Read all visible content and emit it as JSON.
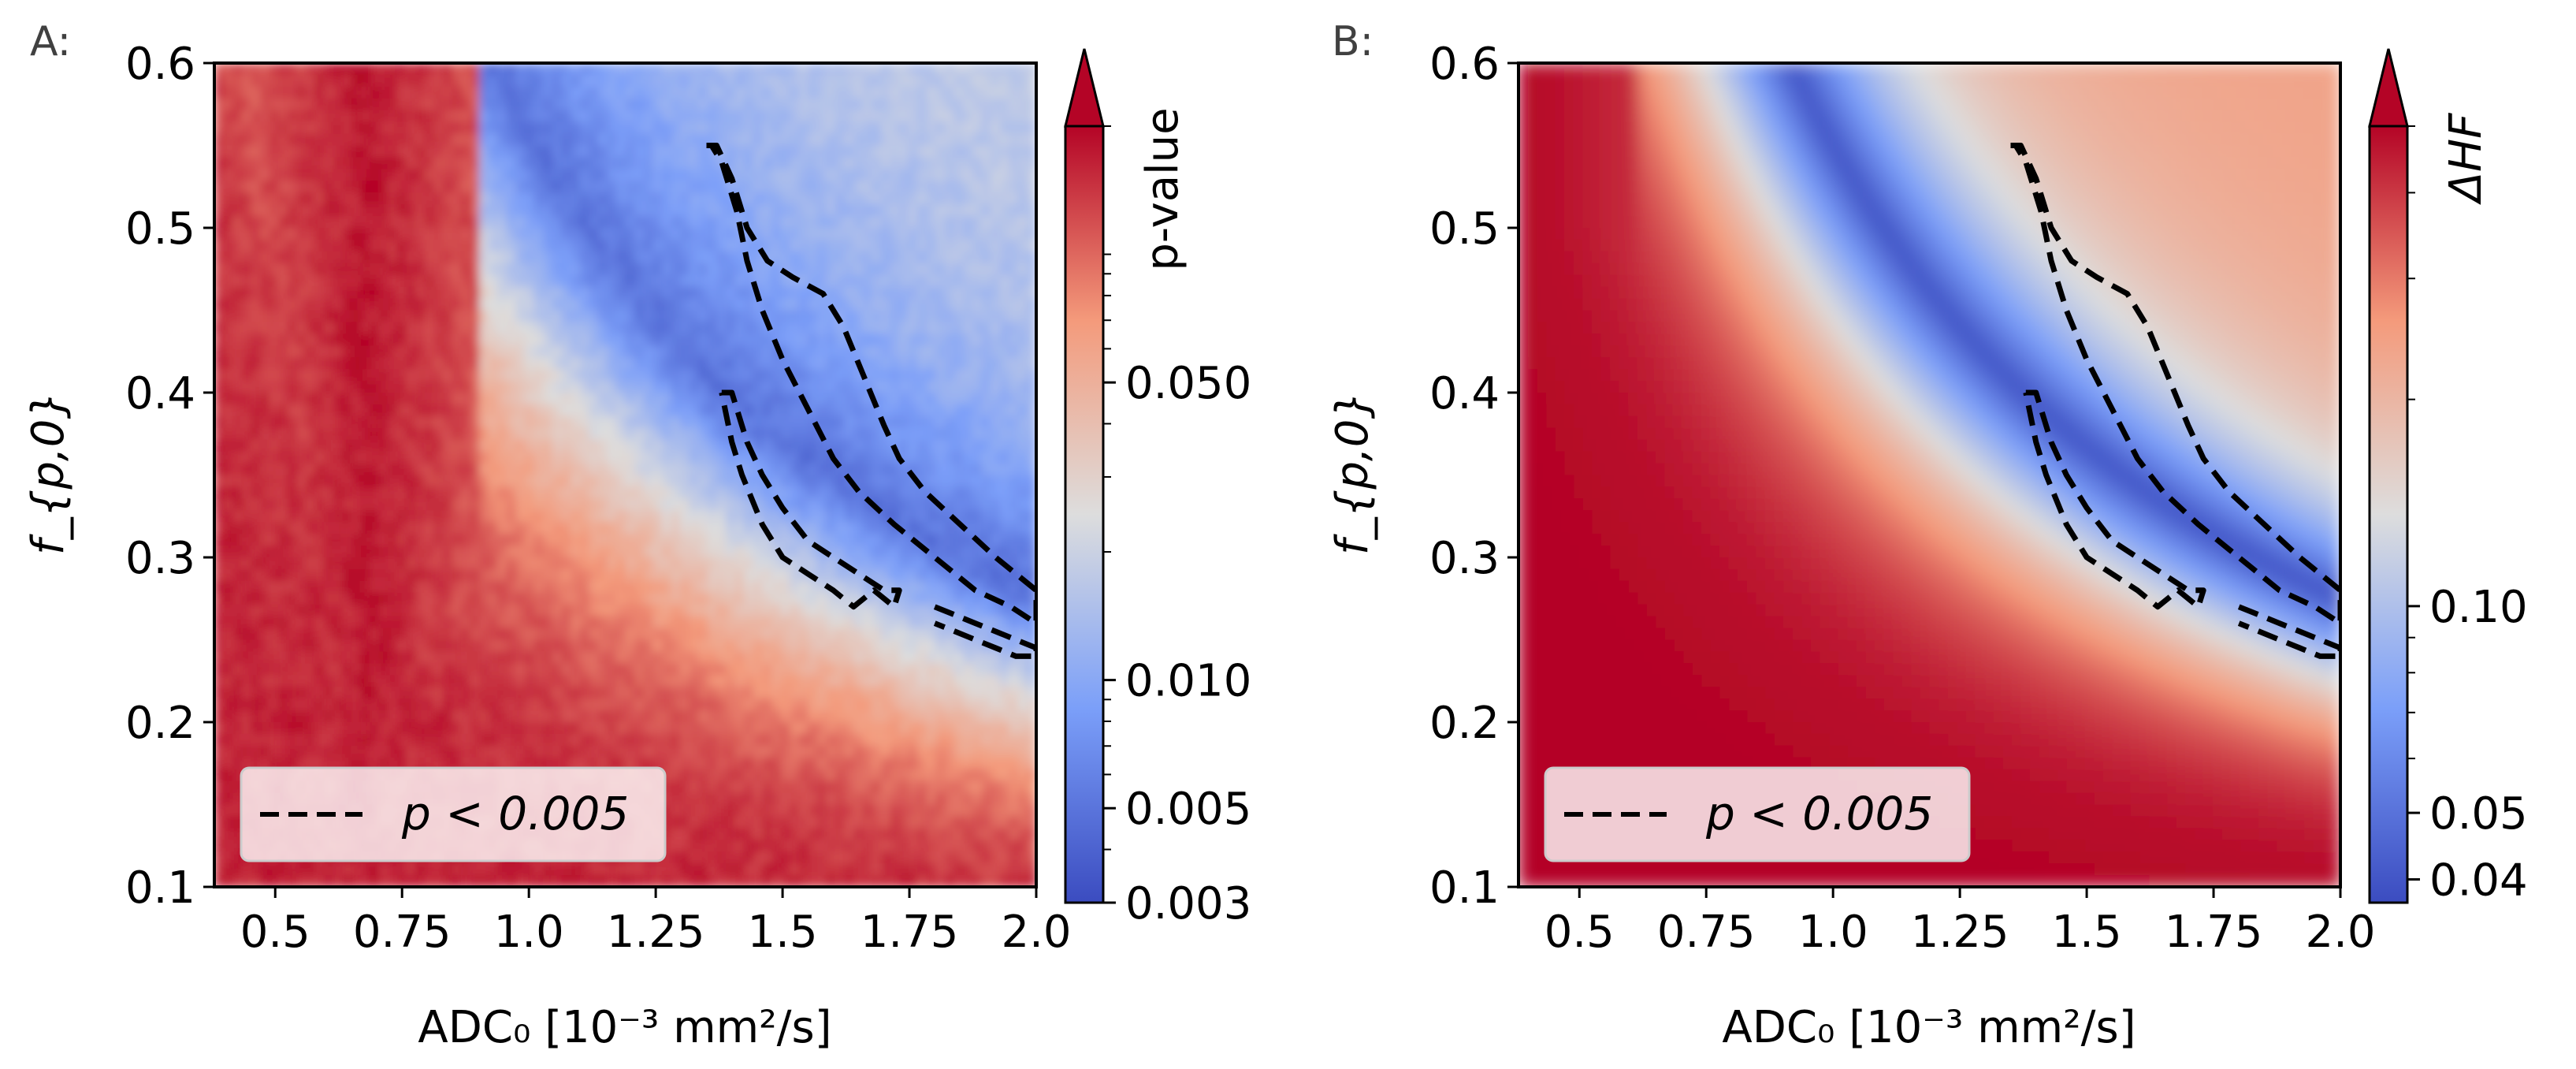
{
  "chart_data": [
    {
      "panel": "A:",
      "type": "heatmap",
      "xlabel": "ADC₀ [10⁻³ mm²/s]",
      "ylabel": "f_{p,0}",
      "xlim": [
        0.38,
        2.0
      ],
      "ylim": [
        0.1,
        0.6
      ],
      "xticks": [
        "0.5",
        "0.75",
        "1.0",
        "1.25",
        "1.5",
        "1.75",
        "2.0"
      ],
      "xtick_values": [
        0.5,
        0.75,
        1.0,
        1.25,
        1.5,
        1.75,
        2.0
      ],
      "yticks": [
        "0.1",
        "0.2",
        "0.3",
        "0.4",
        "0.5",
        "0.6"
      ],
      "ytick_values": [
        0.1,
        0.2,
        0.3,
        0.4,
        0.5,
        0.6
      ],
      "colormap": "coolwarm",
      "colorbar": {
        "label": "p-value",
        "scale": "log",
        "range": [
          0.003,
          0.2
        ],
        "ticks": [
          "0.003",
          "0.005",
          "0.010",
          "0.050"
        ],
        "tick_values": [
          0.003,
          0.005,
          0.01,
          0.05
        ],
        "extend": "max"
      },
      "legend": {
        "line": "dashed",
        "label": "p < 0.005",
        "loc": "lower left"
      },
      "valley_curve": "ADC0 * f_p0 ≈ 0.55 (blue band of low p-value)",
      "contours": [
        {
          "adc": [
            1.35,
            1.37,
            1.4,
            1.43,
            1.47,
            1.52,
            1.58,
            1.62,
            1.66,
            1.7,
            1.73,
            1.78,
            1.85,
            1.92,
            2.0,
            2.0,
            1.95,
            1.88,
            1.8,
            1.72,
            1.65,
            1.6,
            1.55,
            1.5,
            1.46,
            1.43,
            1.41,
            1.38,
            1.36,
            1.35
          ],
          "fp": [
            0.55,
            0.55,
            0.53,
            0.5,
            0.48,
            0.47,
            0.46,
            0.44,
            0.41,
            0.38,
            0.36,
            0.34,
            0.32,
            0.3,
            0.28,
            0.26,
            0.27,
            0.28,
            0.3,
            0.32,
            0.34,
            0.36,
            0.39,
            0.42,
            0.45,
            0.48,
            0.51,
            0.54,
            0.55,
            0.55
          ]
        },
        {
          "adc": [
            1.38,
            1.4,
            1.43,
            1.46,
            1.5,
            1.55,
            1.6,
            1.65,
            1.7,
            1.73,
            1.72,
            1.68,
            1.64,
            1.6,
            1.55,
            1.5,
            1.46,
            1.42,
            1.4,
            1.38
          ],
          "fp": [
            0.4,
            0.4,
            0.37,
            0.35,
            0.33,
            0.31,
            0.3,
            0.29,
            0.28,
            0.28,
            0.27,
            0.28,
            0.27,
            0.28,
            0.29,
            0.3,
            0.32,
            0.35,
            0.37,
            0.4
          ]
        },
        {
          "adc": [
            1.8,
            1.84,
            1.88,
            1.92,
            1.96,
            2.0,
            2.0,
            1.96,
            1.92,
            1.88,
            1.84,
            1.8
          ],
          "fp": [
            0.27,
            0.265,
            0.26,
            0.255,
            0.25,
            0.245,
            0.24,
            0.24,
            0.245,
            0.25,
            0.255,
            0.26
          ]
        }
      ]
    },
    {
      "panel": "B:",
      "type": "heatmap",
      "xlabel": "ADC₀ [10⁻³ mm²/s]",
      "ylabel": "f_{p,0}",
      "xlim": [
        0.38,
        2.0
      ],
      "ylim": [
        0.1,
        0.6
      ],
      "xticks": [
        "0.5",
        "0.75",
        "1.0",
        "1.25",
        "1.5",
        "1.75",
        "2.0"
      ],
      "xtick_values": [
        0.5,
        0.75,
        1.0,
        1.25,
        1.5,
        1.75,
        2.0
      ],
      "yticks": [
        "0.1",
        "0.2",
        "0.3",
        "0.4",
        "0.5",
        "0.6"
      ],
      "ytick_values": [
        0.1,
        0.2,
        0.3,
        0.4,
        0.5,
        0.6
      ],
      "colormap": "coolwarm",
      "colorbar": {
        "label": "ΔHF",
        "scale": "log",
        "range": [
          0.037,
          0.5
        ],
        "ticks": [
          "0.04",
          "0.05",
          "0.10"
        ],
        "tick_values": [
          0.04,
          0.05,
          0.1
        ],
        "extend": "max"
      },
      "legend": {
        "line": "dashed",
        "label": "p < 0.005",
        "loc": "lower left"
      },
      "valley_curve": "ADC0 * f_p0 ≈ 0.55 (blue band of low ΔHF)",
      "contours": "same as panel A"
    }
  ]
}
